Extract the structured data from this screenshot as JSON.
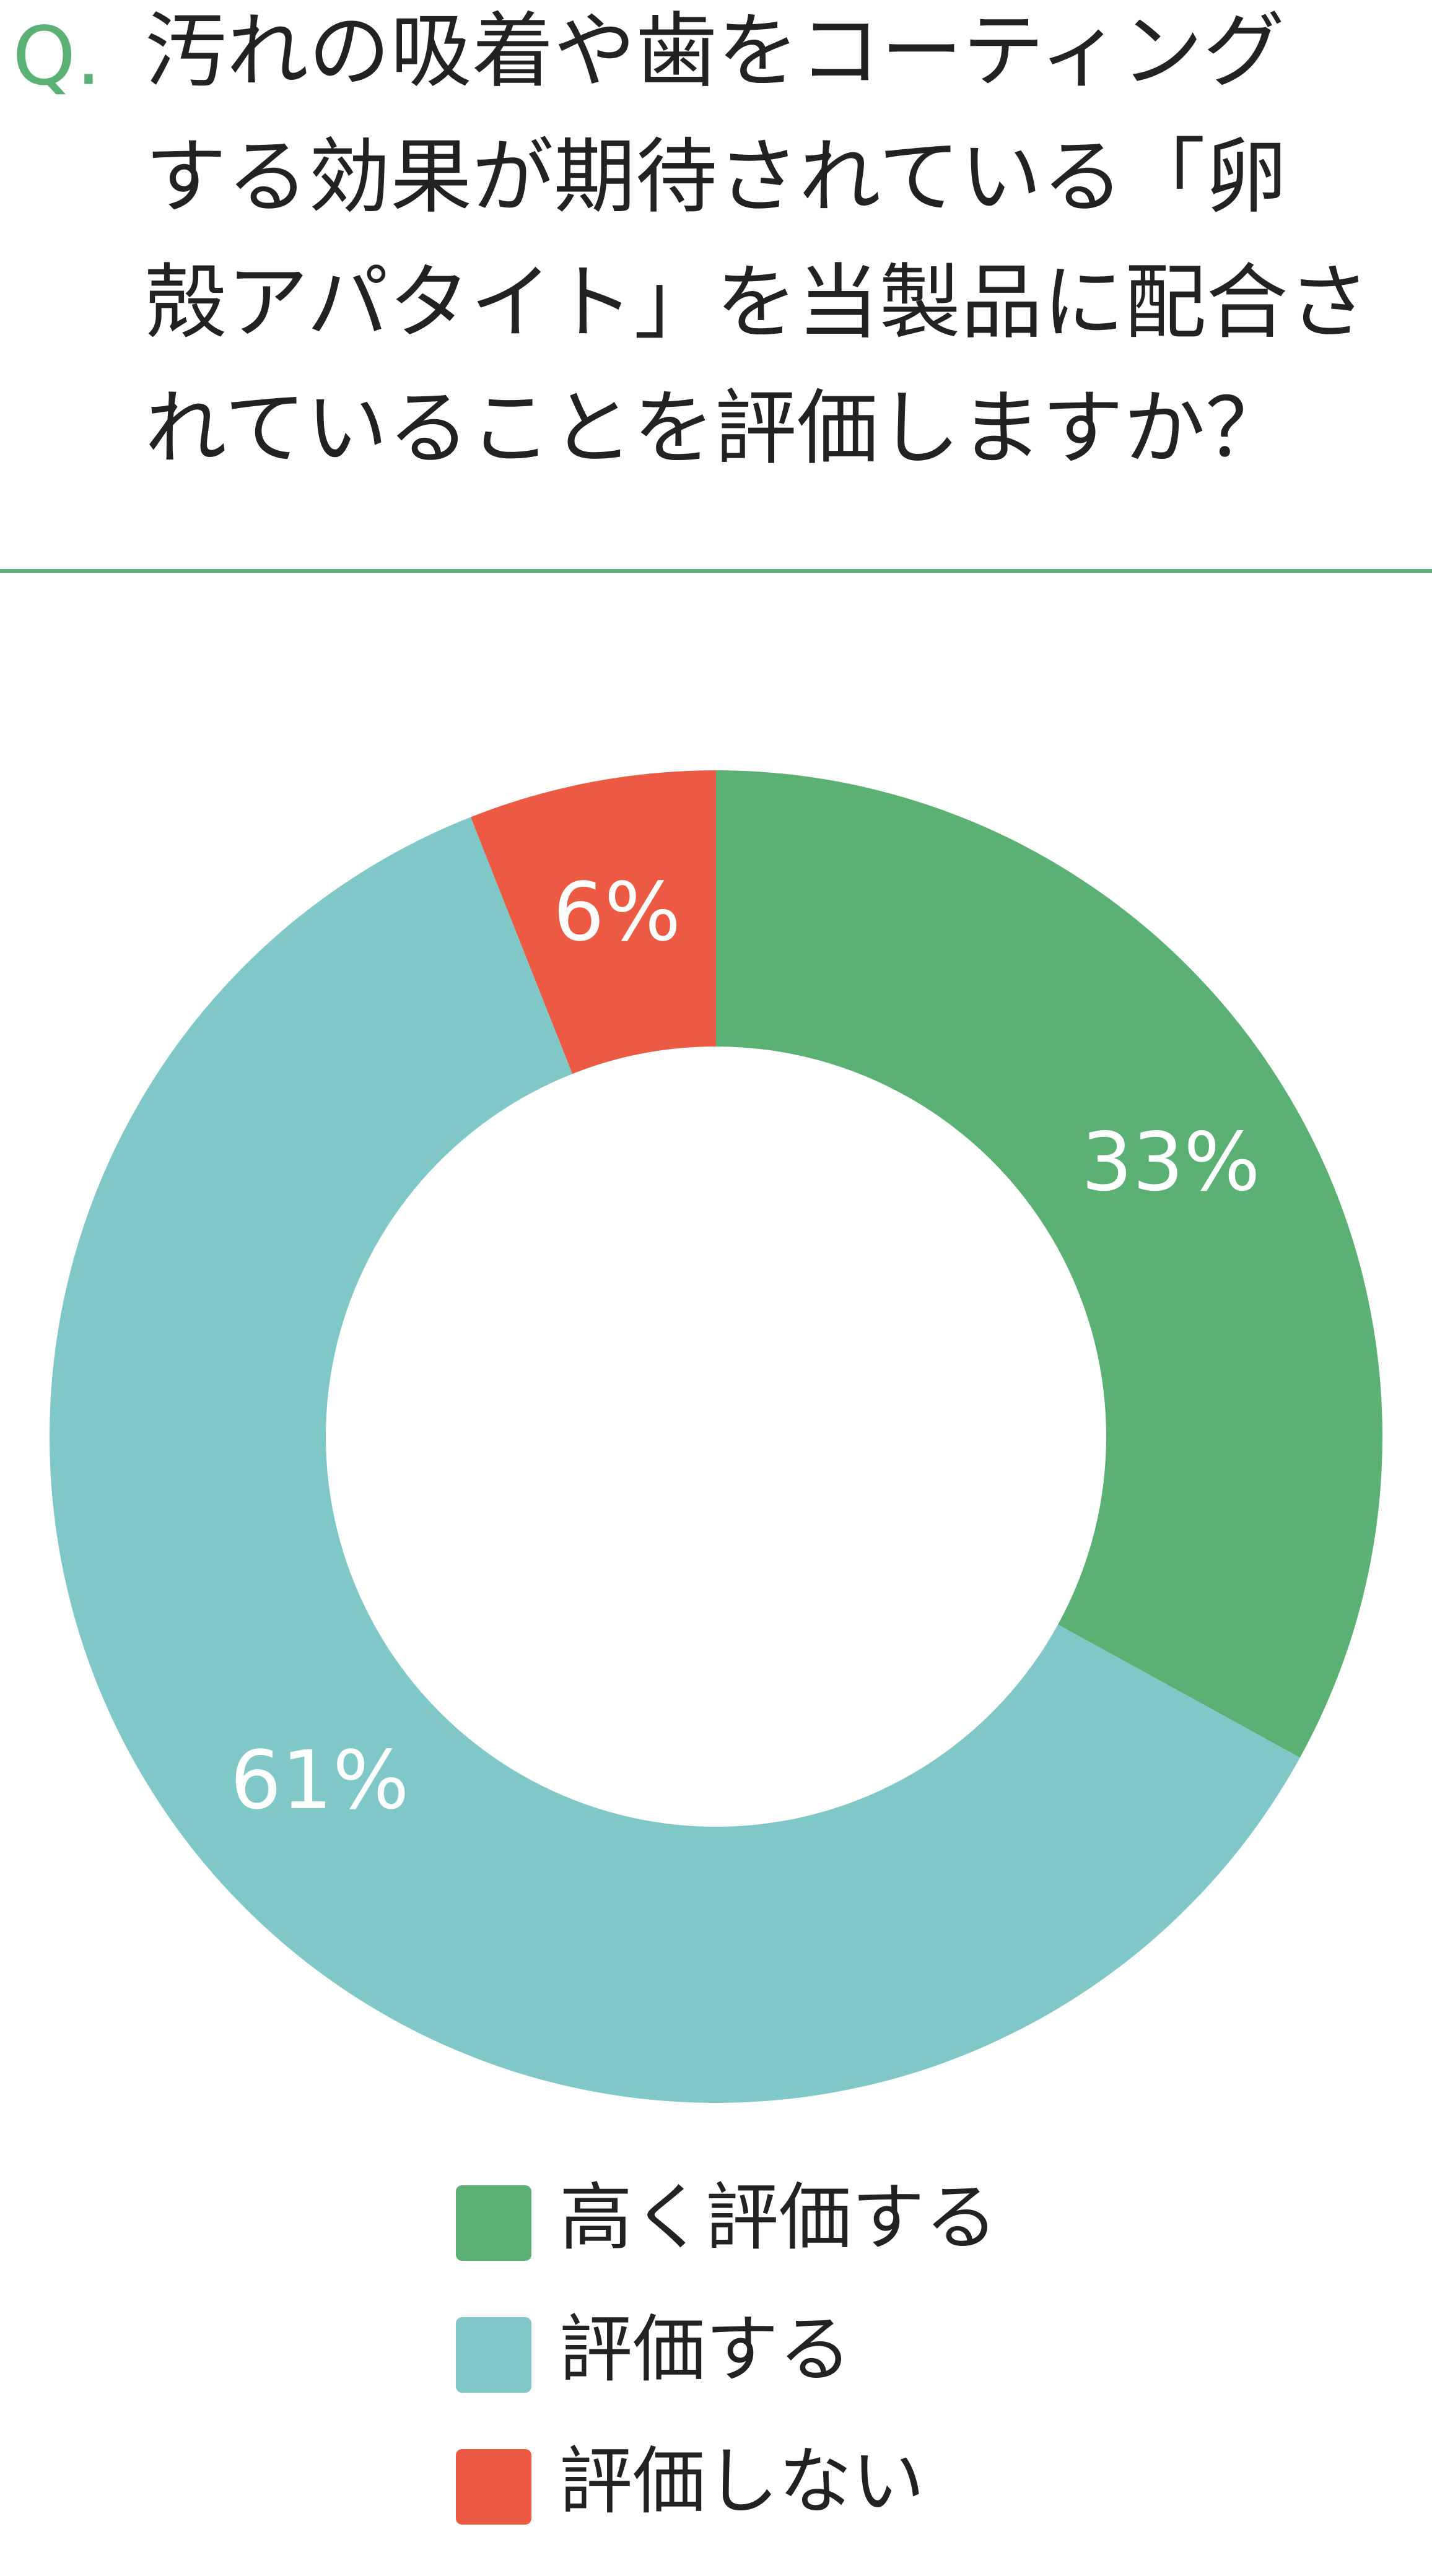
{
  "chart_data": {
    "type": "pie",
    "question_label": "Q.",
    "title_lines": [
      "汚れの吸着や歯をコーティング",
      "する効果が期待されている「卵",
      "殻アパタイト」を当製品に配合さ",
      "れていることを評価しますか？"
    ],
    "categories": [
      "高く評価する",
      "評価する",
      "評価しない"
    ],
    "values": [
      33,
      61,
      6
    ],
    "value_labels": [
      "33%",
      "61%",
      "6%"
    ],
    "colors": [
      "#5bb174",
      "#80c7c7",
      "#ec5a43"
    ]
  }
}
